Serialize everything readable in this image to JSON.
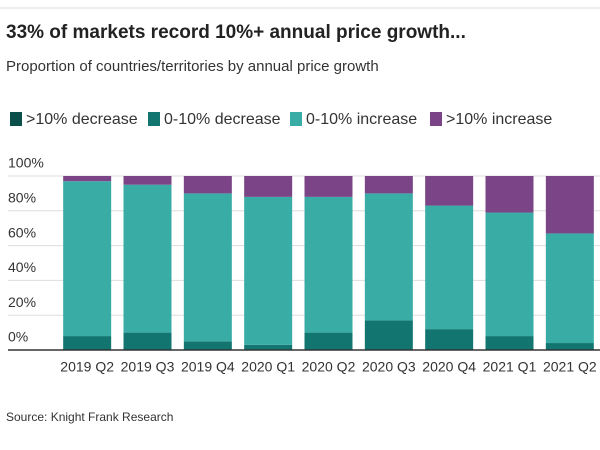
{
  "chart_data": {
    "type": "stacked_bar",
    "title": "33% of markets record 10%+ annual price growth...",
    "subtitle": "Proportion of countries/territories by annual price growth",
    "source": "Source: Knight Frank Research",
    "categories": [
      "2019 Q2",
      "2019 Q3",
      "2019 Q4",
      "2020 Q1",
      "2020 Q2",
      "2020 Q3",
      "2020 Q4",
      "2021 Q1",
      "2021 Q2"
    ],
    "series": [
      {
        "name": ">10% decrease",
        "color": "#0b4f4b",
        "values": [
          0,
          0,
          0,
          0,
          0,
          0,
          0,
          0,
          0
        ]
      },
      {
        "name": "0-10% decrease",
        "color": "#127570",
        "values": [
          8,
          10,
          5,
          3,
          10,
          17,
          12,
          8,
          4
        ]
      },
      {
        "name": "0-10% increase",
        "color": "#3aaca6",
        "values": [
          89,
          85,
          85,
          85,
          78,
          73,
          71,
          71,
          63
        ]
      },
      {
        "name": ">10% increase",
        "color": "#7b4486",
        "values": [
          3,
          5,
          10,
          12,
          12,
          10,
          17,
          21,
          33
        ]
      }
    ],
    "ylim": [
      0,
      100
    ],
    "yticks": [
      {
        "value": 0,
        "label": "0%"
      },
      {
        "value": 20,
        "label": "20%"
      },
      {
        "value": 40,
        "label": "40%"
      },
      {
        "value": 60,
        "label": "60%"
      },
      {
        "value": 80,
        "label": "80%"
      },
      {
        "value": 100,
        "label": "100%"
      }
    ],
    "grid": true
  }
}
